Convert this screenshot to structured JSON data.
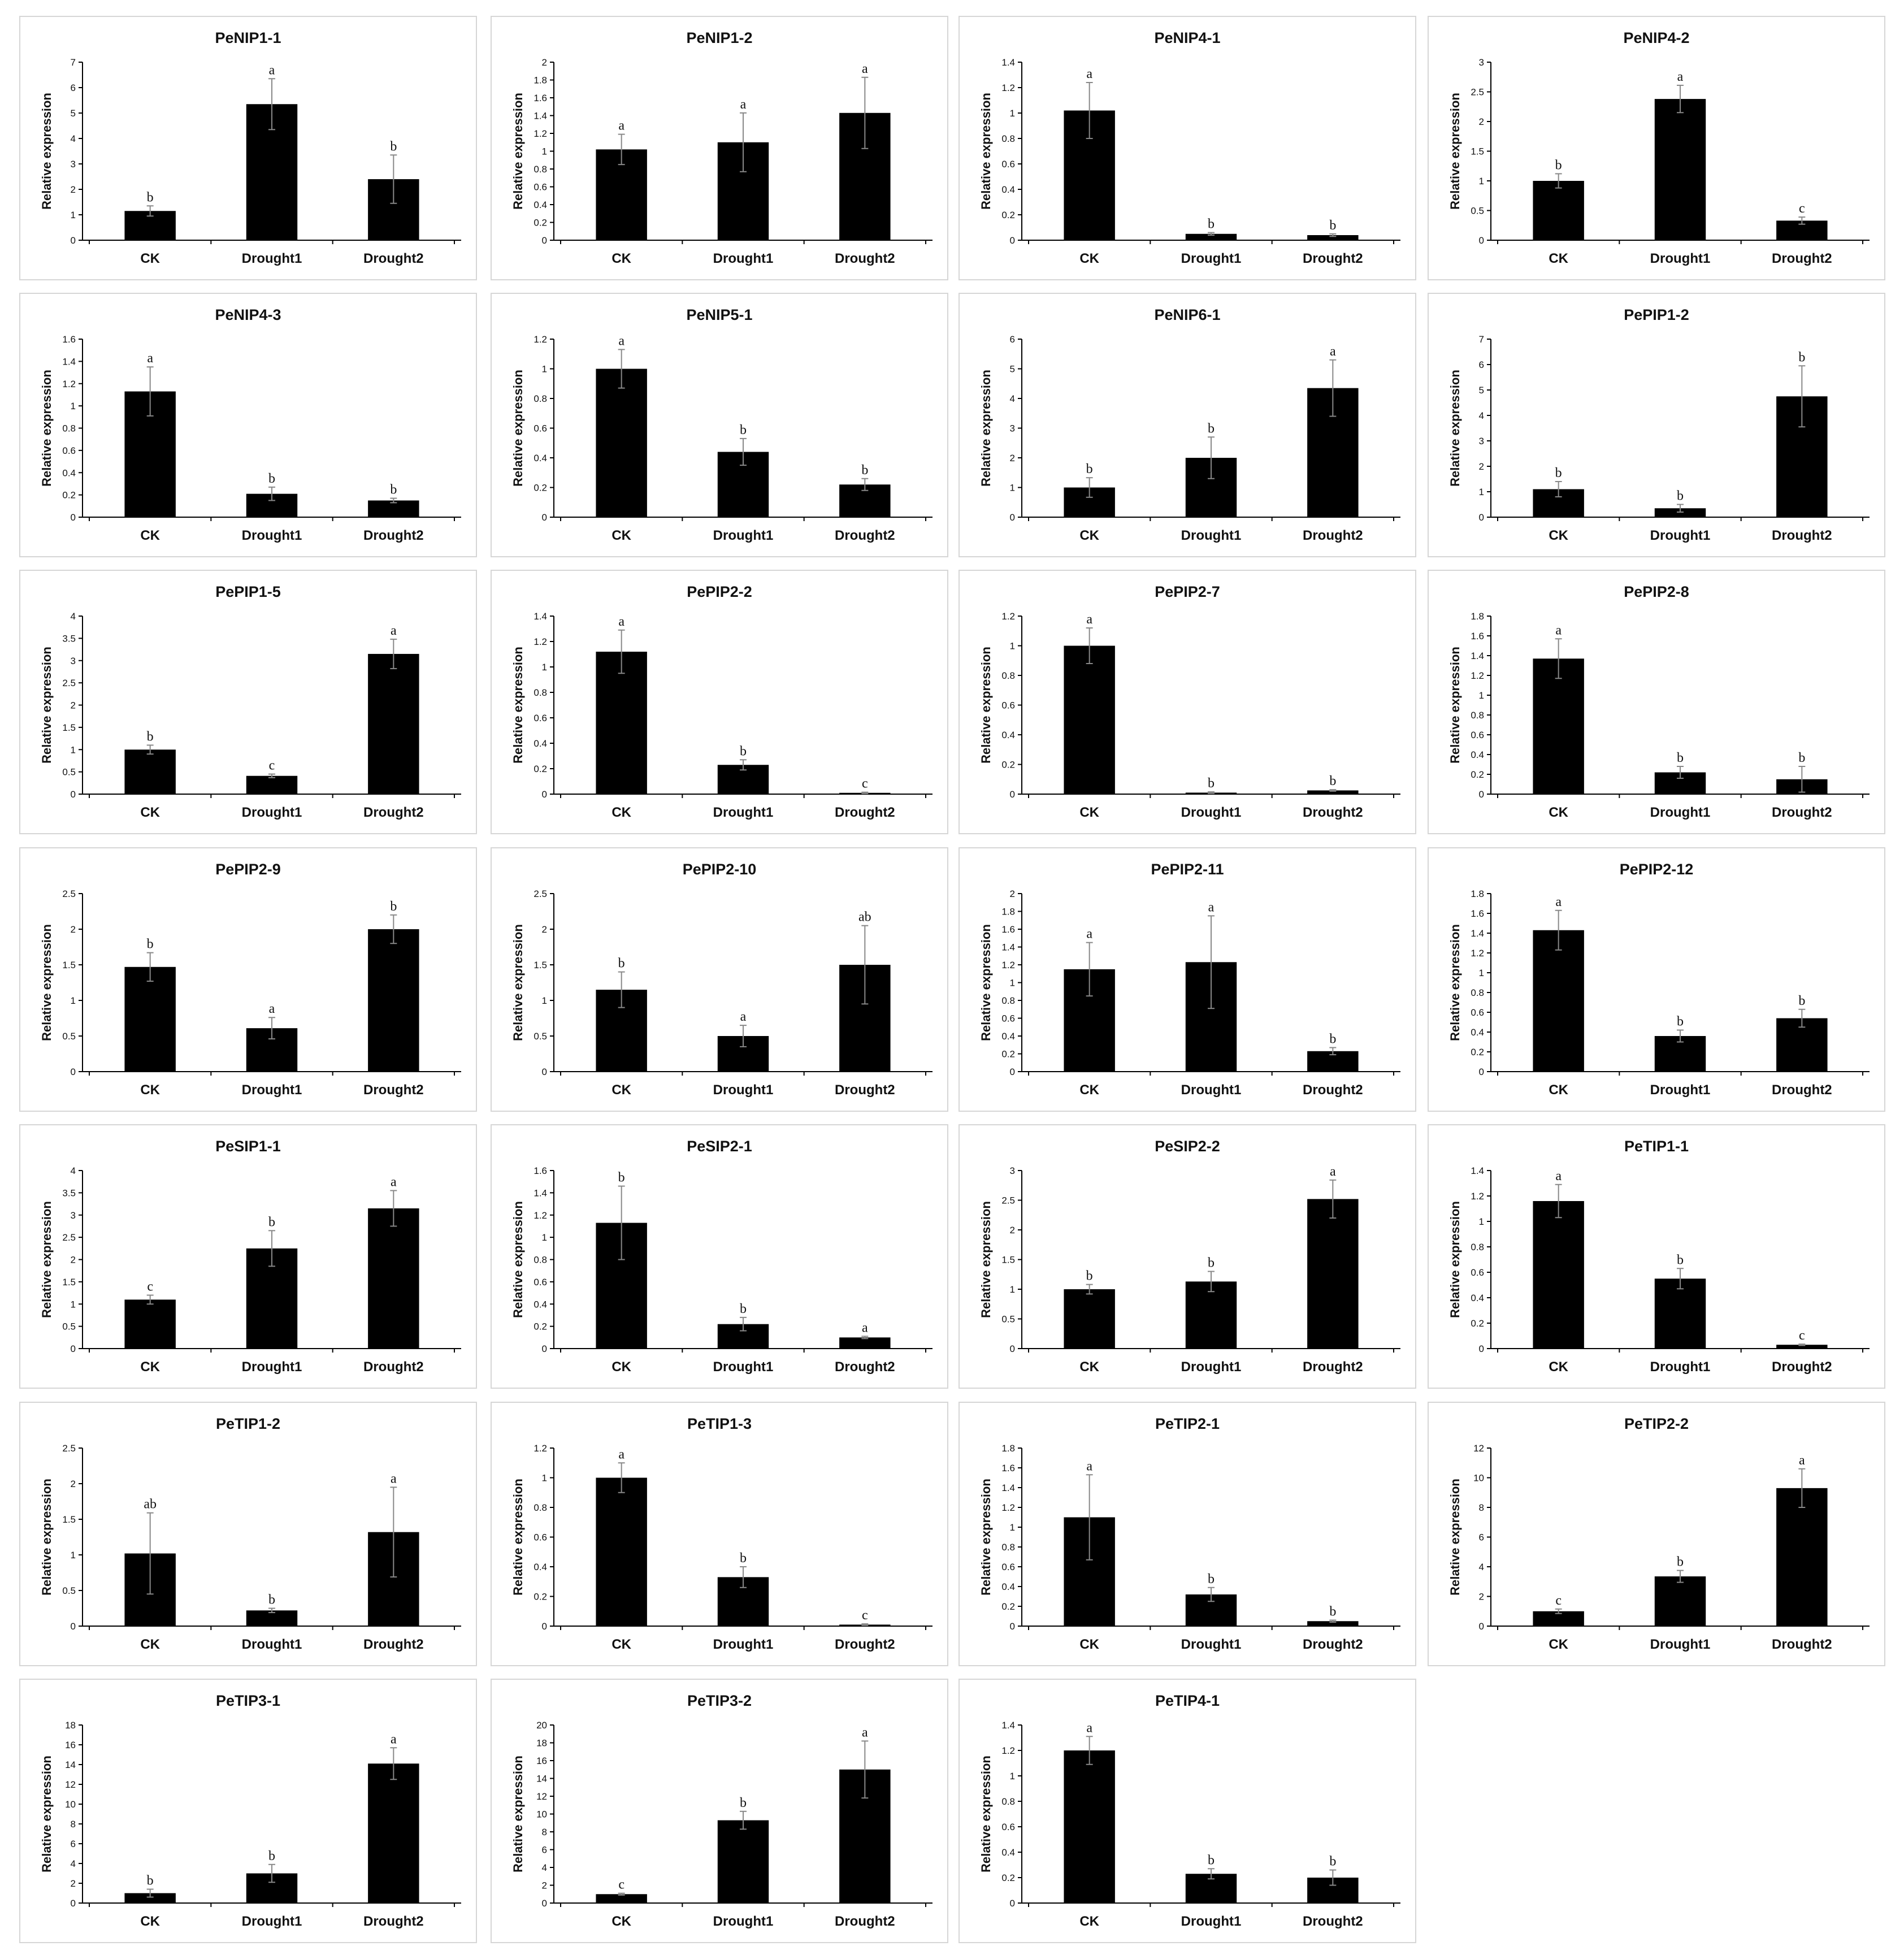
{
  "figure": {
    "ylabel": "Relative expression",
    "bar_color": "#000000"
  },
  "chart_data": [
    {
      "type": "bar",
      "title": "PeNIP1-1",
      "categories": [
        "CK",
        "Drought1",
        "Drought2"
      ],
      "values": [
        1.15,
        5.35,
        2.4
      ],
      "errors": [
        0.2,
        1.0,
        0.95
      ],
      "letters": [
        "b",
        "a",
        "b"
      ],
      "ylabel": "Relative expression",
      "ylim": [
        0,
        7
      ],
      "ytick_step": 1
    },
    {
      "type": "bar",
      "title": "PeNIP1-2",
      "categories": [
        "CK",
        "Drought1",
        "Drought2"
      ],
      "values": [
        1.02,
        1.1,
        1.43
      ],
      "errors": [
        0.17,
        0.33,
        0.4
      ],
      "letters": [
        "a",
        "a",
        "a"
      ],
      "ylabel": "Relative expression",
      "ylim": [
        0,
        2
      ],
      "ytick_step": 0.2
    },
    {
      "type": "bar",
      "title": "PeNIP4-1",
      "categories": [
        "CK",
        "Drought1",
        "Drought2"
      ],
      "values": [
        1.02,
        0.05,
        0.04
      ],
      "errors": [
        0.22,
        0.01,
        0.01
      ],
      "letters": [
        "a",
        "b",
        "b"
      ],
      "ylabel": "Relative expression",
      "ylim": [
        0,
        1.4
      ],
      "ytick_step": 0.2
    },
    {
      "type": "bar",
      "title": "PeNIP4-2",
      "categories": [
        "CK",
        "Drought1",
        "Drought2"
      ],
      "values": [
        1.0,
        2.38,
        0.33
      ],
      "errors": [
        0.12,
        0.23,
        0.06
      ],
      "letters": [
        "b",
        "a",
        "c"
      ],
      "ylabel": "Relative expression",
      "ylim": [
        0,
        3
      ],
      "ytick_step": 0.5
    },
    {
      "type": "bar",
      "title": "PeNIP4-3",
      "categories": [
        "CK",
        "Drought1",
        "Drought2"
      ],
      "values": [
        1.13,
        0.21,
        0.15
      ],
      "errors": [
        0.22,
        0.06,
        0.02
      ],
      "letters": [
        "a",
        "b",
        "b"
      ],
      "ylabel": "Relative expression",
      "ylim": [
        0,
        1.6
      ],
      "ytick_step": 0.2
    },
    {
      "type": "bar",
      "title": "PeNIP5-1",
      "categories": [
        "CK",
        "Drought1",
        "Drought2"
      ],
      "values": [
        1.0,
        0.44,
        0.22
      ],
      "errors": [
        0.13,
        0.09,
        0.04
      ],
      "letters": [
        "a",
        "b",
        "b"
      ],
      "ylabel": "Relative expression",
      "ylim": [
        0,
        1.2
      ],
      "ytick_step": 0.2
    },
    {
      "type": "bar",
      "title": "PeNIP6-1",
      "categories": [
        "CK",
        "Drought1",
        "Drought2"
      ],
      "values": [
        1.0,
        2.0,
        4.35
      ],
      "errors": [
        0.33,
        0.7,
        0.95
      ],
      "letters": [
        "b",
        "b",
        "a"
      ],
      "ylabel": "Relative expression",
      "ylim": [
        0,
        6
      ],
      "ytick_step": 1
    },
    {
      "type": "bar",
      "title": "PePIP1-2",
      "categories": [
        "CK",
        "Drought1",
        "Drought2"
      ],
      "values": [
        1.1,
        0.35,
        4.75
      ],
      "errors": [
        0.3,
        0.15,
        1.2
      ],
      "letters": [
        "b",
        "b",
        "b"
      ],
      "ylabel": "Relative expression",
      "ylim": [
        0,
        7
      ],
      "ytick_step": 1
    },
    {
      "type": "bar",
      "title": "PePIP1-5",
      "categories": [
        "CK",
        "Drought1",
        "Drought2"
      ],
      "values": [
        1.0,
        0.41,
        3.15
      ],
      "errors": [
        0.1,
        0.04,
        0.33
      ],
      "letters": [
        "b",
        "c",
        "a"
      ],
      "ylabel": "Relative expression",
      "ylim": [
        0,
        4
      ],
      "ytick_step": 0.5
    },
    {
      "type": "bar",
      "title": "PePIP2-2",
      "categories": [
        "CK",
        "Drought1",
        "Drought2"
      ],
      "values": [
        1.12,
        0.23,
        0.01
      ],
      "errors": [
        0.17,
        0.04,
        0.005
      ],
      "letters": [
        "a",
        "b",
        "c"
      ],
      "ylabel": "Relative expression",
      "ylim": [
        0,
        1.4
      ],
      "ytick_step": 0.2
    },
    {
      "type": "bar",
      "title": "PePIP2-7",
      "categories": [
        "CK",
        "Drought1",
        "Drought2"
      ],
      "values": [
        1.0,
        0.01,
        0.025
      ],
      "errors": [
        0.12,
        0.005,
        0.005
      ],
      "letters": [
        "a",
        "b",
        "b"
      ],
      "ylabel": "Relative expression",
      "ylim": [
        0,
        1.2
      ],
      "ytick_step": 0.2
    },
    {
      "type": "bar",
      "title": "PePIP2-8",
      "categories": [
        "CK",
        "Drought1",
        "Drought2"
      ],
      "values": [
        1.37,
        0.22,
        0.15
      ],
      "errors": [
        0.2,
        0.06,
        0.13
      ],
      "letters": [
        "a",
        "b",
        "b"
      ],
      "ylabel": "Relative expression",
      "ylim": [
        0,
        1.8
      ],
      "ytick_step": 0.2
    },
    {
      "type": "bar",
      "title": "PePIP2-9",
      "categories": [
        "CK",
        "Drought1",
        "Drought2"
      ],
      "values": [
        1.47,
        0.61,
        2.0
      ],
      "errors": [
        0.2,
        0.15,
        0.2
      ],
      "letters": [
        "b",
        "a",
        "b"
      ],
      "ylabel": "Relative expression",
      "ylim": [
        0,
        2.5
      ],
      "ytick_step": 0.5
    },
    {
      "type": "bar",
      "title": "PePIP2-10",
      "categories": [
        "CK",
        "Drought1",
        "Drought2"
      ],
      "values": [
        1.15,
        0.5,
        1.5
      ],
      "errors": [
        0.25,
        0.15,
        0.55
      ],
      "letters": [
        "b",
        "a",
        "ab"
      ],
      "ylabel": "Relative expression",
      "ylim": [
        0,
        2.5
      ],
      "ytick_step": 0.5
    },
    {
      "type": "bar",
      "title": "PePIP2-11",
      "categories": [
        "CK",
        "Drought1",
        "Drought2"
      ],
      "values": [
        1.15,
        1.23,
        0.23
      ],
      "errors": [
        0.3,
        0.52,
        0.04
      ],
      "letters": [
        "a",
        "a",
        "b"
      ],
      "ylabel": "Relative expression",
      "ylim": [
        0,
        2
      ],
      "ytick_step": 0.2
    },
    {
      "type": "bar",
      "title": "PePIP2-12",
      "categories": [
        "CK",
        "Drought1",
        "Drought2"
      ],
      "values": [
        1.43,
        0.36,
        0.54
      ],
      "errors": [
        0.2,
        0.06,
        0.09
      ],
      "letters": [
        "a",
        "b",
        "b"
      ],
      "ylabel": "Relative expression",
      "ylim": [
        0,
        1.8
      ],
      "ytick_step": 0.2
    },
    {
      "type": "bar",
      "title": "PeSIP1-1",
      "categories": [
        "CK",
        "Drought1",
        "Drought2"
      ],
      "values": [
        1.1,
        2.25,
        3.15
      ],
      "errors": [
        0.1,
        0.4,
        0.4
      ],
      "letters": [
        "c",
        "b",
        "a"
      ],
      "ylabel": "Relative expression",
      "ylim": [
        0,
        4
      ],
      "ytick_step": 0.5
    },
    {
      "type": "bar",
      "title": "PeSIP2-1",
      "categories": [
        "CK",
        "Drought1",
        "Drought2"
      ],
      "values": [
        1.13,
        0.22,
        0.1
      ],
      "errors": [
        0.33,
        0.06,
        0.01
      ],
      "letters": [
        "b",
        "b",
        "a"
      ],
      "ylabel": "Relative expression",
      "ylim": [
        0,
        1.6
      ],
      "ytick_step": 0.2
    },
    {
      "type": "bar",
      "title": "PeSIP2-2",
      "categories": [
        "CK",
        "Drought1",
        "Drought2"
      ],
      "values": [
        1.0,
        1.13,
        2.52
      ],
      "errors": [
        0.08,
        0.17,
        0.32
      ],
      "letters": [
        "b",
        "b",
        "a"
      ],
      "ylabel": "Relative expression",
      "ylim": [
        0,
        3
      ],
      "ytick_step": 0.5
    },
    {
      "type": "bar",
      "title": "PeTIP1-1",
      "categories": [
        "CK",
        "Drought1",
        "Drought2"
      ],
      "values": [
        1.16,
        0.55,
        0.03
      ],
      "errors": [
        0.13,
        0.08,
        0.005
      ],
      "letters": [
        "a",
        "b",
        "c"
      ],
      "ylabel": "Relative expression",
      "ylim": [
        0,
        1.4
      ],
      "ytick_step": 0.2
    },
    {
      "type": "bar",
      "title": "PeTIP1-2",
      "categories": [
        "CK",
        "Drought1",
        "Drought2"
      ],
      "values": [
        1.02,
        0.22,
        1.32
      ],
      "errors": [
        0.57,
        0.03,
        0.63
      ],
      "letters": [
        "ab",
        "b",
        "a"
      ],
      "ylabel": "Relative expression",
      "ylim": [
        0,
        2.5
      ],
      "ytick_step": 0.5
    },
    {
      "type": "bar",
      "title": "PeTIP1-3",
      "categories": [
        "CK",
        "Drought1",
        "Drought2"
      ],
      "values": [
        1.0,
        0.33,
        0.01
      ],
      "errors": [
        0.1,
        0.07,
        0.005
      ],
      "letters": [
        "a",
        "b",
        "c"
      ],
      "ylabel": "Relative expression",
      "ylim": [
        0,
        1.2
      ],
      "ytick_step": 0.2
    },
    {
      "type": "bar",
      "title": "PeTIP2-1",
      "categories": [
        "CK",
        "Drought1",
        "Drought2"
      ],
      "values": [
        1.1,
        0.32,
        0.05
      ],
      "errors": [
        0.43,
        0.07,
        0.01
      ],
      "letters": [
        "a",
        "b",
        "b"
      ],
      "ylabel": "Relative expression",
      "ylim": [
        0,
        1.8
      ],
      "ytick_step": 0.2
    },
    {
      "type": "bar",
      "title": "PeTIP2-2",
      "categories": [
        "CK",
        "Drought1",
        "Drought2"
      ],
      "values": [
        1.0,
        3.35,
        9.3
      ],
      "errors": [
        0.15,
        0.4,
        1.3
      ],
      "letters": [
        "c",
        "b",
        "a"
      ],
      "ylabel": "Relative expression",
      "ylim": [
        0,
        12
      ],
      "ytick_step": 2
    },
    {
      "type": "bar",
      "title": "PeTIP3-1",
      "categories": [
        "CK",
        "Drought1",
        "Drought2"
      ],
      "values": [
        1.0,
        3.0,
        14.1
      ],
      "errors": [
        0.4,
        0.9,
        1.6
      ],
      "letters": [
        "b",
        "b",
        "a"
      ],
      "ylabel": "Relative expression",
      "ylim": [
        0,
        18
      ],
      "ytick_step": 2
    },
    {
      "type": "bar",
      "title": "PeTIP3-2",
      "categories": [
        "CK",
        "Drought1",
        "Drought2"
      ],
      "values": [
        1.0,
        9.3,
        15.0
      ],
      "errors": [
        0.1,
        1.0,
        3.2
      ],
      "letters": [
        "c",
        "b",
        "a"
      ],
      "ylabel": "Relative expression",
      "ylim": [
        0,
        20
      ],
      "ytick_step": 2
    },
    {
      "type": "bar",
      "title": "PeTIP4-1",
      "categories": [
        "CK",
        "Drought1",
        "Drought2"
      ],
      "values": [
        1.2,
        0.23,
        0.2
      ],
      "errors": [
        0.11,
        0.04,
        0.06
      ],
      "letters": [
        "a",
        "b",
        "b"
      ],
      "ylabel": "Relative expression",
      "ylim": [
        0,
        1.4
      ],
      "ytick_step": 0.2
    }
  ]
}
